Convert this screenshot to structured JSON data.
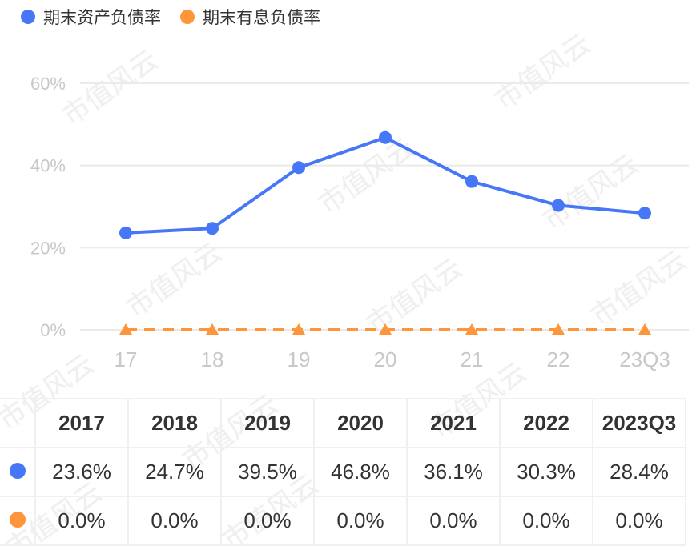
{
  "watermark": "市值风云",
  "colors": {
    "series1": "#4677f6",
    "series2": "#ff953a",
    "grid": "#ebebeb",
    "axis_text": "#c8c8c8"
  },
  "chart_data": {
    "type": "line",
    "categories": [
      "17",
      "18",
      "19",
      "20",
      "21",
      "22",
      "23Q3"
    ],
    "ylim": [
      0,
      60
    ],
    "yticks": [
      "0%",
      "20%",
      "40%",
      "60%"
    ],
    "ytick_values": [
      0,
      20,
      40,
      60
    ],
    "grid": true,
    "legend_placement": "top-left",
    "series": [
      {
        "name": "期末资产负债率",
        "values": [
          23.6,
          24.7,
          39.5,
          46.8,
          36.1,
          30.3,
          28.4
        ],
        "marker": "circle",
        "style": "solid"
      },
      {
        "name": "期末有息负债率",
        "values": [
          0,
          0,
          0,
          0,
          0,
          0,
          0
        ],
        "marker": "triangle",
        "style": "dashed"
      }
    ]
  },
  "table": {
    "headers": [
      "2017",
      "2018",
      "2019",
      "2020",
      "2021",
      "2022",
      "2023Q3"
    ],
    "rows": [
      [
        "23.6%",
        "24.7%",
        "39.5%",
        "46.8%",
        "36.1%",
        "30.3%",
        "28.4%"
      ],
      [
        "0.0%",
        "0.0%",
        "0.0%",
        "0.0%",
        "0.0%",
        "0.0%",
        "0.0%"
      ]
    ]
  }
}
